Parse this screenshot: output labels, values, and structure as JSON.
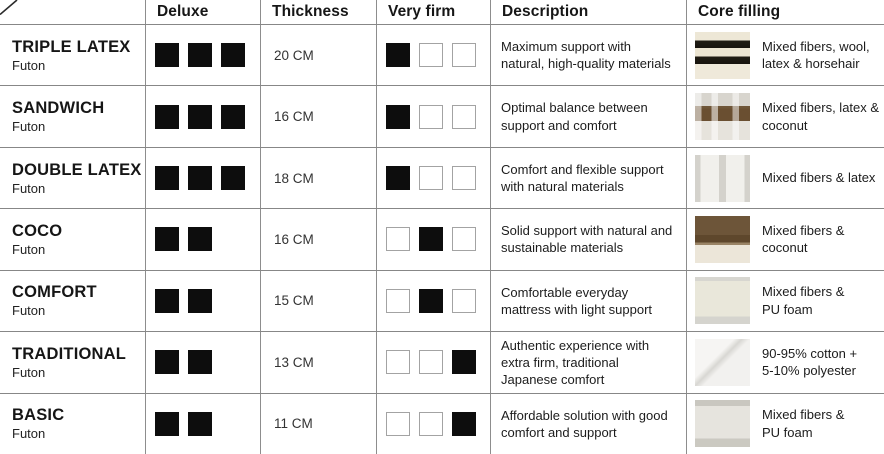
{
  "header": {
    "columns": [
      "",
      "Deluxe",
      "Thickness",
      "Very firm",
      "Description",
      "Core filling"
    ]
  },
  "colors": {
    "square_fill": "#0d0d0d",
    "empty_square_border": "#a3a3a3",
    "grid_line": "#8d8d8d",
    "background": "#ffffff"
  },
  "rows": [
    {
      "name": "TRIPLE LATEX",
      "subtitle": "Futon",
      "deluxe": [
        1,
        1,
        1
      ],
      "thickness": "20 CM",
      "very_firm": [
        1,
        0,
        0
      ],
      "description": "Maximum support with\nnatural, high-quality materials",
      "core_filling": "Mixed fibers, wool,\nlatex & horsehair",
      "swatch": "wool-horsehair"
    },
    {
      "name": "SANDWICH",
      "subtitle": "Futon",
      "deluxe": [
        1,
        1,
        1
      ],
      "thickness": "16 CM",
      "very_firm": [
        1,
        0,
        0
      ],
      "description": "Optimal balance between\nsupport and comfort",
      "core_filling": "Mixed fibers, latex &\ncoconut",
      "swatch": "sandwich-coconut"
    },
    {
      "name": "DOUBLE LATEX",
      "subtitle": "Futon",
      "deluxe": [
        1,
        1,
        1
      ],
      "thickness": "18 CM",
      "very_firm": [
        1,
        0,
        0
      ],
      "description": "Comfort and flexible support\nwith natural materials",
      "core_filling": "Mixed fibers & latex",
      "swatch": "latex"
    },
    {
      "name": "COCO",
      "subtitle": "Futon",
      "deluxe": [
        1,
        1
      ],
      "thickness": "16 CM",
      "very_firm": [
        0,
        1,
        0
      ],
      "description": "Solid support with natural and\nsustainable materials",
      "core_filling": "Mixed fibers &\ncoconut",
      "swatch": "coconut"
    },
    {
      "name": "COMFORT",
      "subtitle": "Futon",
      "deluxe": [
        1,
        1
      ],
      "thickness": "15 CM",
      "very_firm": [
        0,
        1,
        0
      ],
      "description": "Comfortable everyday\nmattress with light support",
      "core_filling": "Mixed fibers &\nPU foam",
      "swatch": "pu-foam"
    },
    {
      "name": "TRADITIONAL",
      "subtitle": "Futon",
      "deluxe": [
        1,
        1
      ],
      "thickness": "13 CM",
      "very_firm": [
        0,
        0,
        1
      ],
      "description": "Authentic experience with\nextra firm, traditional\nJapanese comfort",
      "core_filling": "90-95% cotton +\n5-10% polyester",
      "swatch": "cotton"
    },
    {
      "name": "BASIC",
      "subtitle": "Futon",
      "deluxe": [
        1,
        1
      ],
      "thickness": "11 CM",
      "very_firm": [
        0,
        0,
        1
      ],
      "description": "Affordable solution with good\ncomfort and support",
      "core_filling": "Mixed fibers &\nPU foam",
      "swatch": "basic-foam"
    }
  ]
}
